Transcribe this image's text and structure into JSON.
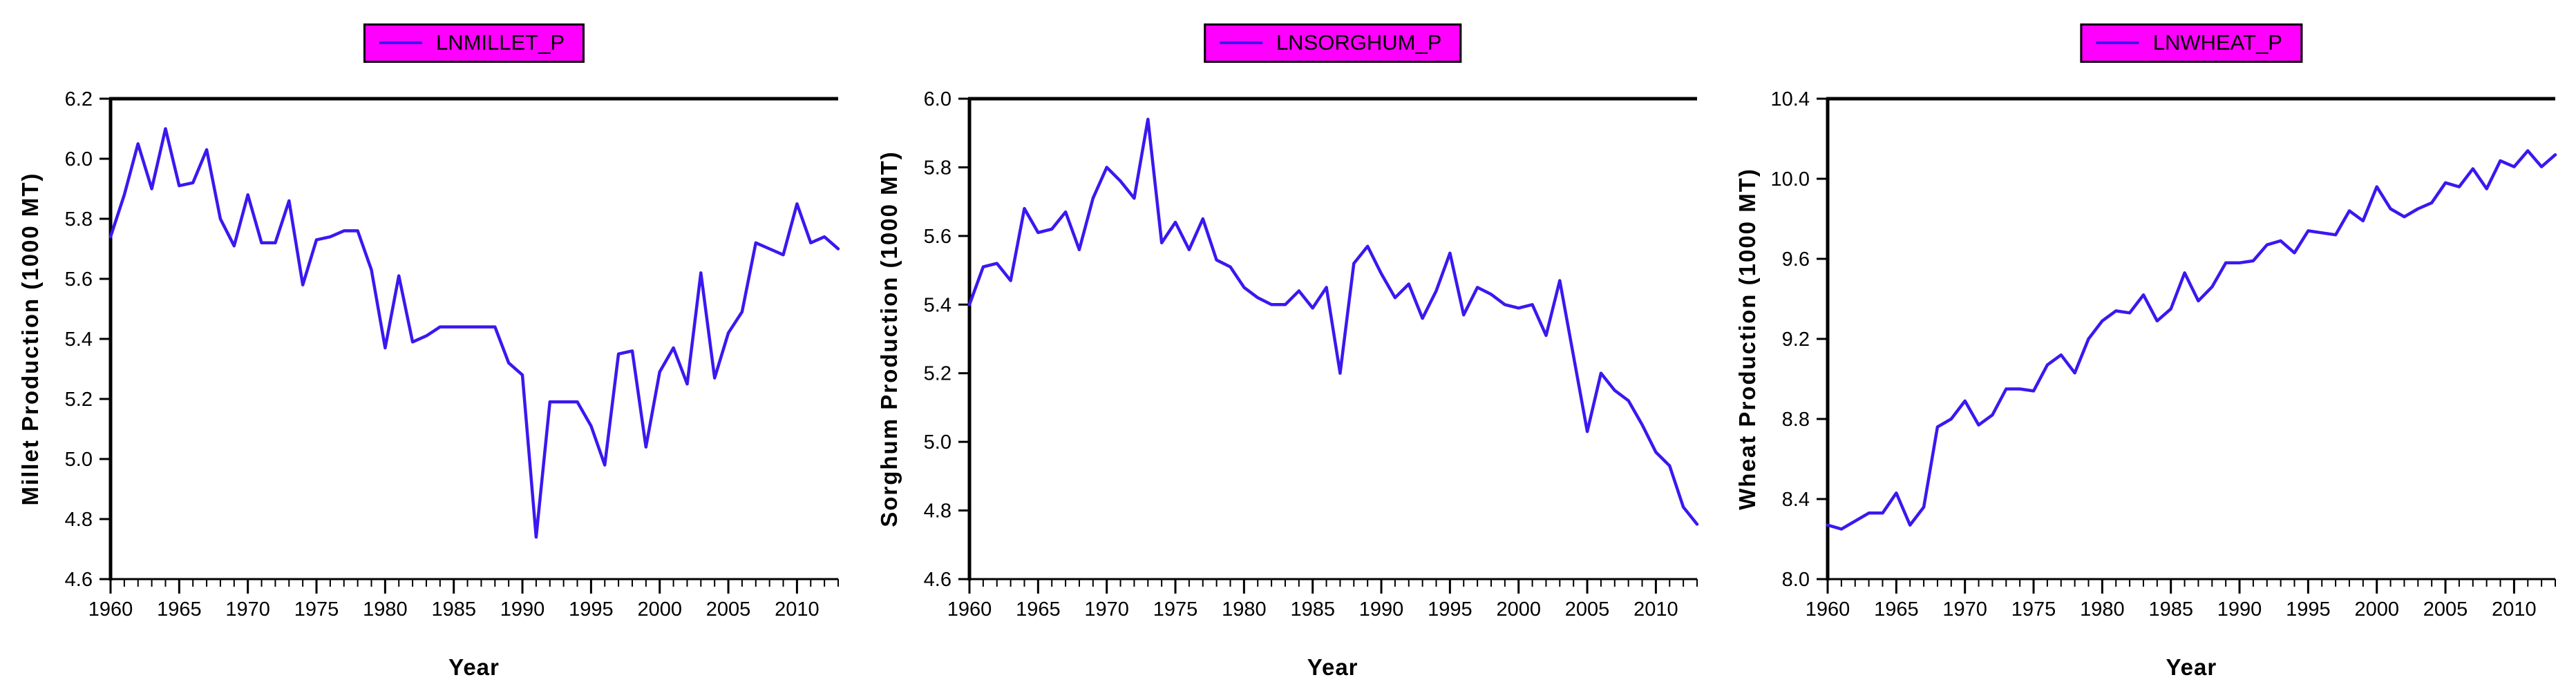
{
  "chart_data": [
    {
      "type": "line",
      "legend": "LNMILLET_P",
      "xlabel": "Year",
      "ylabel": "Millet Production (1000 MT)",
      "ylim": [
        4.6,
        6.2
      ],
      "y_tick_step": 0.2,
      "x_major_ticks": [
        1960,
        1965,
        1970,
        1975,
        1980,
        1985,
        1990,
        1995,
        2000,
        2005,
        2010
      ],
      "x_years": [
        1960,
        1961,
        1962,
        1963,
        1964,
        1965,
        1966,
        1967,
        1968,
        1969,
        1970,
        1971,
        1972,
        1973,
        1974,
        1975,
        1976,
        1977,
        1978,
        1979,
        1980,
        1981,
        1982,
        1983,
        1984,
        1985,
        1986,
        1987,
        1988,
        1989,
        1990,
        1991,
        1992,
        1993,
        1994,
        1995,
        1996,
        1997,
        1998,
        1999,
        2000,
        2001,
        2002,
        2003,
        2004,
        2005,
        2006,
        2007,
        2008,
        2009,
        2010,
        2011,
        2012,
        2013
      ],
      "values": [
        5.74,
        5.88,
        6.05,
        5.9,
        6.1,
        5.91,
        5.92,
        6.03,
        5.8,
        5.71,
        5.88,
        5.72,
        5.72,
        5.86,
        5.58,
        5.73,
        5.74,
        5.76,
        5.76,
        5.63,
        5.37,
        5.61,
        5.39,
        5.41,
        5.44,
        5.44,
        5.44,
        5.44,
        5.44,
        5.32,
        5.28,
        4.74,
        5.19,
        5.19,
        5.19,
        5.11,
        4.98,
        5.35,
        5.36,
        5.04,
        5.29,
        5.37,
        5.25,
        5.62,
        5.27,
        5.42,
        5.49,
        5.72,
        5.7,
        5.68,
        5.85,
        5.72,
        5.74,
        5.7
      ],
      "line_color": "#3a18f0",
      "legend_fill": "#ff00ff",
      "axis_color": "#000000",
      "grid": "off",
      "legend_position": "top-center"
    },
    {
      "type": "line",
      "legend": "LNSORGHUM_P",
      "xlabel": "Year",
      "ylabel": "Sorghum Production (1000 MT)",
      "ylim": [
        4.6,
        6.0
      ],
      "y_tick_step": 0.2,
      "x_major_ticks": [
        1960,
        1965,
        1970,
        1975,
        1980,
        1985,
        1990,
        1995,
        2000,
        2005,
        2010
      ],
      "x_years": [
        1960,
        1961,
        1962,
        1963,
        1964,
        1965,
        1966,
        1967,
        1968,
        1969,
        1970,
        1971,
        1972,
        1973,
        1974,
        1975,
        1976,
        1977,
        1978,
        1979,
        1980,
        1981,
        1982,
        1983,
        1984,
        1985,
        1986,
        1987,
        1988,
        1989,
        1990,
        1991,
        1992,
        1993,
        1994,
        1995,
        1996,
        1997,
        1998,
        1999,
        2000,
        2001,
        2002,
        2003,
        2004,
        2005,
        2006,
        2007,
        2008,
        2009,
        2010,
        2011,
        2012,
        2013
      ],
      "values": [
        5.4,
        5.51,
        5.52,
        5.47,
        5.68,
        5.61,
        5.62,
        5.67,
        5.56,
        5.71,
        5.8,
        5.76,
        5.71,
        5.94,
        5.58,
        5.64,
        5.56,
        5.65,
        5.53,
        5.51,
        5.45,
        5.42,
        5.4,
        5.4,
        5.44,
        5.39,
        5.45,
        5.2,
        5.52,
        5.57,
        5.49,
        5.42,
        5.46,
        5.36,
        5.44,
        5.55,
        5.37,
        5.45,
        5.43,
        5.4,
        5.39,
        5.4,
        5.31,
        5.47,
        5.25,
        5.03,
        5.2,
        5.15,
        5.12,
        5.05,
        4.97,
        4.93,
        4.81,
        4.76
      ],
      "line_color": "#3a18f0",
      "legend_fill": "#ff00ff",
      "axis_color": "#000000",
      "grid": "off",
      "legend_position": "top-center"
    },
    {
      "type": "line",
      "legend": "LNWHEAT_P",
      "xlabel": "Year",
      "ylabel": "Wheat Production (1000 MT)",
      "ylim": [
        8.0,
        10.4
      ],
      "y_tick_step": 0.4,
      "x_major_ticks": [
        1960,
        1965,
        1970,
        1975,
        1980,
        1985,
        1990,
        1995,
        2000,
        2005,
        2010
      ],
      "x_years": [
        1960,
        1961,
        1962,
        1963,
        1964,
        1965,
        1966,
        1967,
        1968,
        1969,
        1970,
        1971,
        1972,
        1973,
        1974,
        1975,
        1976,
        1977,
        1978,
        1979,
        1980,
        1981,
        1982,
        1983,
        1984,
        1985,
        1986,
        1987,
        1988,
        1989,
        1990,
        1991,
        1992,
        1993,
        1994,
        1995,
        1996,
        1997,
        1998,
        1999,
        2000,
        2001,
        2002,
        2003,
        2004,
        2005,
        2006,
        2007,
        2008,
        2009,
        2010,
        2011,
        2012,
        2013
      ],
      "values": [
        8.27,
        8.25,
        8.29,
        8.33,
        8.33,
        8.43,
        8.27,
        8.36,
        8.76,
        8.8,
        8.89,
        8.77,
        8.82,
        8.95,
        8.95,
        8.94,
        9.07,
        9.12,
        9.03,
        9.2,
        9.29,
        9.34,
        9.33,
        9.42,
        9.29,
        9.35,
        9.53,
        9.39,
        9.46,
        9.58,
        9.58,
        9.59,
        9.67,
        9.69,
        9.63,
        9.74,
        9.73,
        9.72,
        9.84,
        9.79,
        9.96,
        9.85,
        9.81,
        9.85,
        9.88,
        9.98,
        9.96,
        10.05,
        9.95,
        10.09,
        10.06,
        10.14,
        10.06,
        10.12
      ],
      "line_color": "#3a18f0",
      "legend_fill": "#ff00ff",
      "axis_color": "#000000",
      "grid": "off",
      "legend_position": "top-center"
    }
  ]
}
